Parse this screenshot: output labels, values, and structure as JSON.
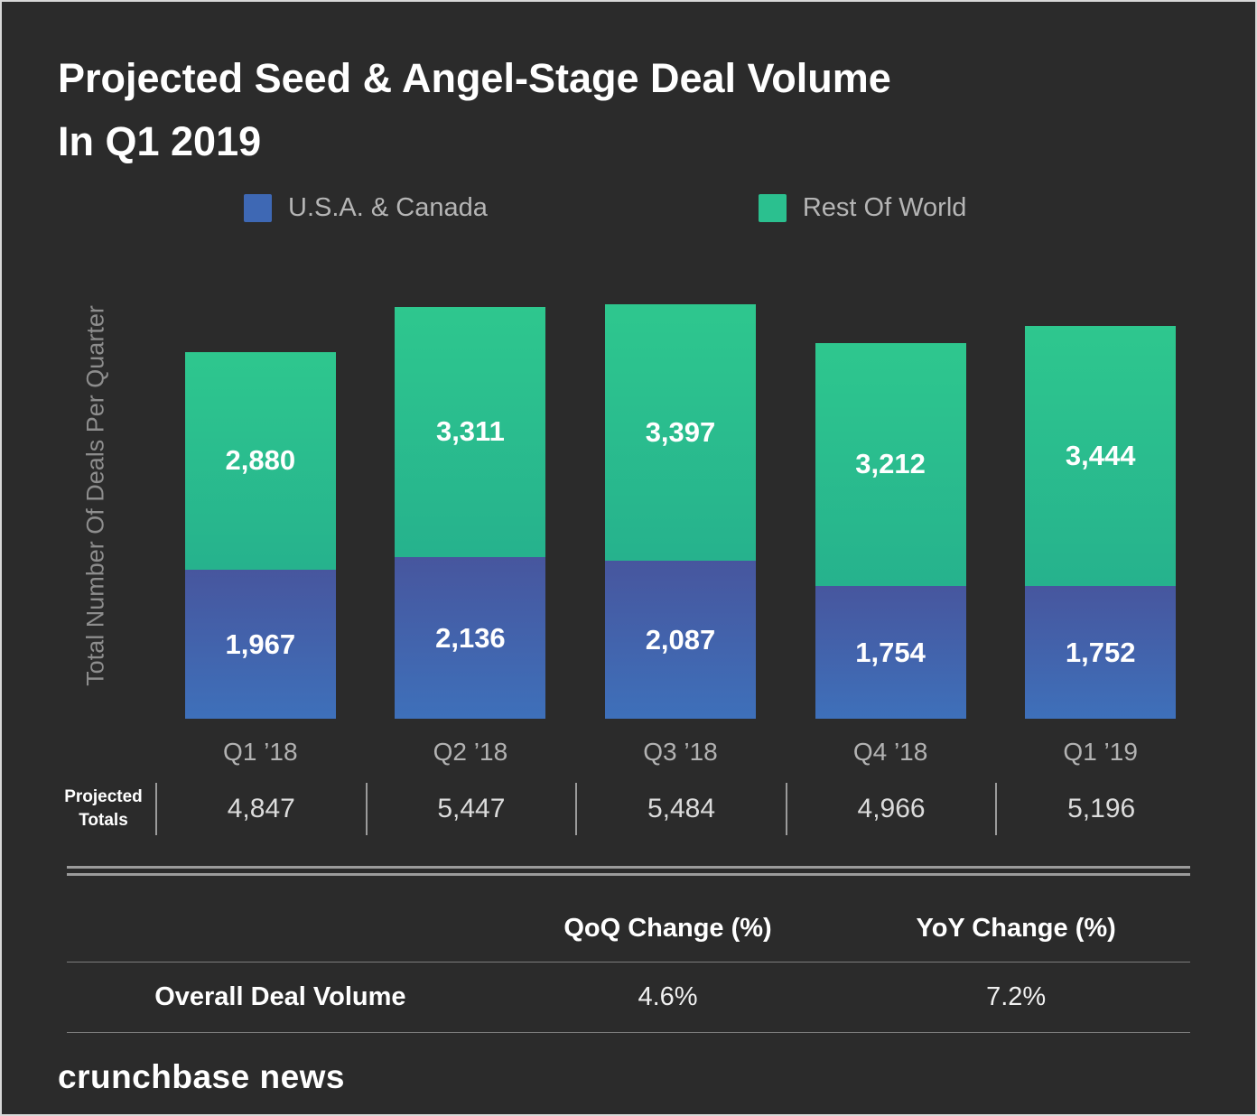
{
  "title": {
    "line1": "Projected Seed & Angel-Stage Deal Volume",
    "line2": "In Q1 2019"
  },
  "legend": [
    {
      "label": "U.S.A. & Canada",
      "color": "#3e68b4"
    },
    {
      "label": "Rest Of World",
      "color": "#2bc08f"
    }
  ],
  "chart_data": {
    "type": "bar",
    "stacked": true,
    "title": "Projected Seed & Angel-Stage Deal Volume In Q1 2019",
    "ylabel": "Total Number Of Deals Per Quarter",
    "xlabel": "",
    "grid": false,
    "legend_position": "top",
    "categories": [
      "Q1 ’18",
      "Q2 ’18",
      "Q3 ’18",
      "Q4 ’18",
      "Q1 ’19"
    ],
    "series": [
      {
        "name": "U.S.A. & Canada",
        "values": [
          1967,
          2136,
          2087,
          1754,
          1752
        ],
        "labels": [
          "1,967",
          "2,136",
          "2,087",
          "1,754",
          "1,752"
        ],
        "gradient_top": "#47569e",
        "gradient_bottom": "#3e70ba"
      },
      {
        "name": "Rest Of World",
        "values": [
          2880,
          3311,
          3397,
          3212,
          3444
        ],
        "labels": [
          "2,880",
          "3,311",
          "3,397",
          "3,212",
          "3,444"
        ],
        "gradient_top": "#2ec78e",
        "gradient_bottom": "#26b28d"
      }
    ],
    "totals_label": {
      "line1": "Projected",
      "line2": "Totals"
    },
    "totals": [
      "4,847",
      "5,447",
      "5,484",
      "4,966",
      "5,196"
    ],
    "totals_numeric": [
      4847,
      5447,
      5484,
      4966,
      5196
    ],
    "ylim": [
      0,
      5484
    ]
  },
  "table": {
    "headers": [
      "QoQ Change (%)",
      "YoY Change (%)"
    ],
    "rows": [
      {
        "label": "Overall Deal Volume",
        "qoq": "4.6%",
        "yoy": "7.2%"
      }
    ]
  },
  "footer": {
    "brand": "crunchbase news"
  },
  "colors": {
    "background": "#2b2b2b",
    "frame_border": "#d8d8d8",
    "usa_canada_blue": "#3e68b4",
    "rest_of_world_green": "#2bc08f",
    "muted_text": "#b2b2b2"
  }
}
